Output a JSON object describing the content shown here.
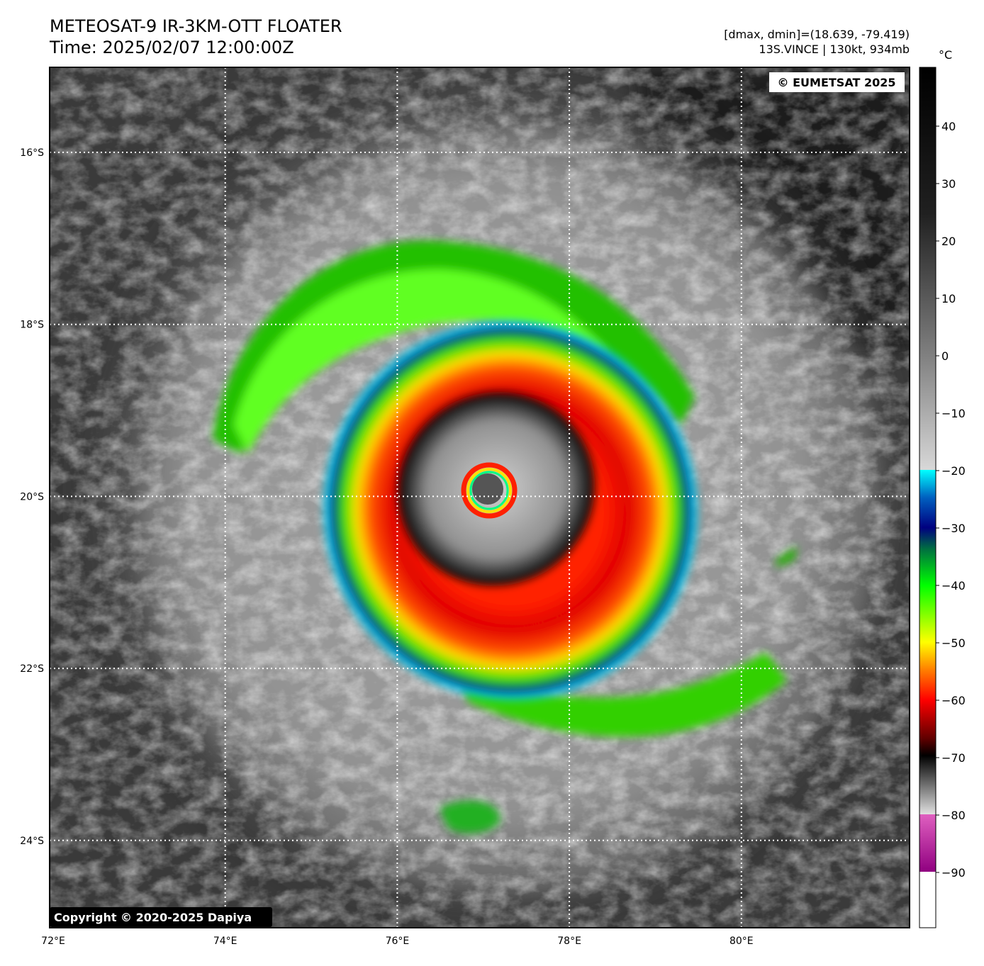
{
  "header": {
    "title": "METEOSAT-9 IR-3KM-OTT FLOATER",
    "time": "Time: 2025/02/07 12:00:00Z",
    "info": [
      "[dmax, dmin]=(18.639, -79.419)",
      "13S.VINCE | 130kt, 934mb"
    ]
  },
  "map": {
    "watermark": "© EUMETSAT 2025",
    "copyright": "Copyright © 2020-2025 Dapiya",
    "lon_labels": [
      "72°E",
      "74°E",
      "76°E",
      "78°E",
      "80°E"
    ],
    "lat_labels": [
      "16°S",
      "18°S",
      "20°S",
      "22°S",
      "24°S"
    ]
  },
  "colorbar": {
    "unit": "°C",
    "ticks": [
      "40",
      "30",
      "20",
      "10",
      "0",
      "−10",
      "−20",
      "−30",
      "−40",
      "−50",
      "−60",
      "−70",
      "−80",
      "−90"
    ]
  }
}
